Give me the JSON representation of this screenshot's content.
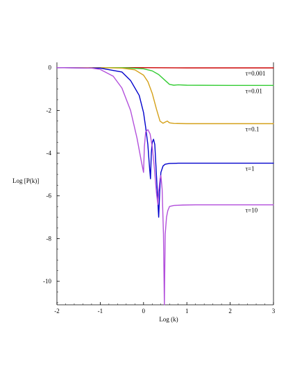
{
  "chart_data": {
    "type": "line",
    "title": "",
    "xlabel": "Log (k)",
    "ylabel": "Log [P(k)]",
    "xlim": [
      -2,
      3
    ],
    "ylim": [
      -11.1,
      0.25
    ],
    "x_ticks": [
      "-2",
      "-1",
      "0",
      "1",
      "2",
      "3"
    ],
    "y_ticks": [
      "0",
      "-2",
      "-4",
      "-6",
      "-8",
      "-10"
    ],
    "x_tick_values": [
      -2,
      -1,
      0,
      1,
      2,
      3
    ],
    "y_tick_values": [
      0,
      -2,
      -4,
      -6,
      -8,
      -10
    ],
    "grid": false,
    "legend": "inline labels at right",
    "series": [
      {
        "label": "τ=0.001",
        "color": "#cc0000",
        "x": [
          -2,
          0,
          1,
          2,
          3
        ],
        "y": [
          0,
          0,
          -0.01,
          -0.01,
          -0.01
        ]
      },
      {
        "label": "τ=0.01",
        "color": "#33cc33",
        "x": [
          -2,
          -0.5,
          0,
          0.2,
          0.35,
          0.5,
          0.6,
          0.7,
          0.8,
          1,
          2,
          3
        ],
        "y": [
          0,
          0,
          -0.05,
          -0.15,
          -0.32,
          -0.6,
          -0.78,
          -0.82,
          -0.8,
          -0.82,
          -0.83,
          -0.83
        ]
      },
      {
        "label": "τ=0.1",
        "color": "#d4a017",
        "x": [
          -2,
          -1,
          -0.5,
          -0.2,
          0,
          0.1,
          0.2,
          0.3,
          0.38,
          0.45,
          0.5,
          0.55,
          0.6,
          0.7,
          1,
          2,
          3
        ],
        "y": [
          0,
          0,
          -0.02,
          -0.1,
          -0.35,
          -0.65,
          -1.2,
          -1.95,
          -2.5,
          -2.6,
          -2.55,
          -2.5,
          -2.58,
          -2.61,
          -2.62,
          -2.62,
          -2.62
        ]
      },
      {
        "label": "τ=1",
        "color": "#0000cc",
        "x": [
          -2,
          -1,
          -0.5,
          -0.3,
          -0.1,
          0,
          0.05,
          0.1,
          0.14,
          0.16,
          0.18,
          0.2,
          0.23,
          0.26,
          0.3,
          0.35,
          0.38,
          0.4,
          0.45,
          0.5,
          0.6,
          0.8,
          1,
          2,
          3
        ],
        "y": [
          0,
          -0.02,
          -0.2,
          -0.6,
          -1.3,
          -2.1,
          -2.8,
          -3.6,
          -4.7,
          -5.2,
          -4.0,
          -3.5,
          -3.35,
          -3.6,
          -5.1,
          -7.0,
          -5.5,
          -4.9,
          -4.6,
          -4.52,
          -4.48,
          -4.47,
          -4.47,
          -4.47,
          -4.47
        ]
      },
      {
        "label": "τ=10",
        "color": "#b24fdb",
        "x": [
          -2,
          -1.2,
          -1,
          -0.7,
          -0.5,
          -0.3,
          -0.15,
          -0.05,
          0,
          0.02,
          0.05,
          0.1,
          0.15,
          0.2,
          0.25,
          0.3,
          0.33,
          0.35,
          0.38,
          0.4,
          0.43,
          0.46,
          0.48,
          0.5,
          0.53,
          0.56,
          0.6,
          0.7,
          0.9,
          1.2,
          2,
          3
        ],
        "y": [
          0,
          -0.02,
          -0.08,
          -0.4,
          -0.95,
          -2.0,
          -3.3,
          -4.4,
          -4.9,
          -3.7,
          -3.0,
          -2.9,
          -3.1,
          -3.7,
          -4.7,
          -5.9,
          -6.4,
          -5.8,
          -5.2,
          -5.05,
          -5.7,
          -7.8,
          -11.1,
          -7.8,
          -7.0,
          -6.7,
          -6.5,
          -6.45,
          -6.43,
          -6.42,
          -6.42,
          -6.42
        ]
      }
    ]
  }
}
